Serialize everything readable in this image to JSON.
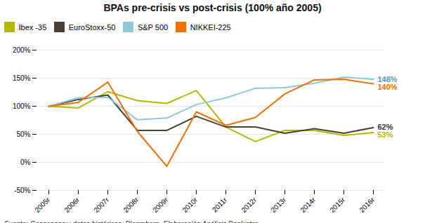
{
  "chart_data": {
    "type": "line",
    "title": "BPAs pre-crisis vs post-crisis (100% año 2005)",
    "caption": "Fuente: Consensos y datos históricos, Bloomberg. Elaboración Análisis Bankinter",
    "categories": [
      "2005r",
      "2006r",
      "2007r",
      "2008r",
      "2009r",
      "2010r",
      "2011r",
      "2012r",
      "2013r",
      "2014r",
      "2015r",
      "2016r"
    ],
    "series": [
      {
        "name": "Ibex -35",
        "color": "#b5b800",
        "values": [
          100,
          97,
          126,
          110,
          105,
          128,
          63,
          37,
          57,
          57,
          48,
          53
        ]
      },
      {
        "name": "EuroStoxx-50",
        "color": "#4a3f35",
        "values": [
          100,
          112,
          120,
          57,
          57,
          82,
          63,
          63,
          52,
          60,
          52,
          62
        ]
      },
      {
        "name": "S&P 500",
        "color": "#8fc8d8",
        "values": [
          100,
          115,
          116,
          76,
          79,
          103,
          115,
          132,
          133,
          141,
          152,
          148
        ]
      },
      {
        "name": "NIKKEI-225",
        "color": "#f07000",
        "values": [
          100,
          107,
          143,
          55,
          -7,
          90,
          66,
          80,
          122,
          147,
          148,
          140
        ]
      }
    ],
    "annotations": [
      {
        "text": "53%",
        "x": "2016r",
        "y": 53,
        "color": "#b5b800"
      },
      {
        "text": "62%",
        "x": "2016r",
        "y": 62,
        "color": "#333333"
      },
      {
        "text": "148%",
        "x": "2016r",
        "y": 148,
        "color": "#5b9ab5"
      },
      {
        "text": "140%",
        "x": "2016r",
        "y": 140,
        "color": "#f07000"
      }
    ],
    "ylim": [
      -50,
      200
    ],
    "yticks": [
      {
        "value": -50,
        "label": "-50%"
      },
      {
        "value": 0,
        "label": "0%"
      },
      {
        "value": 50,
        "label": "50%"
      },
      {
        "value": 100,
        "label": "100%"
      },
      {
        "value": 150,
        "label": "150%"
      },
      {
        "value": 200,
        "label": "200%"
      }
    ],
    "grid": true,
    "legend": "upper left"
  }
}
